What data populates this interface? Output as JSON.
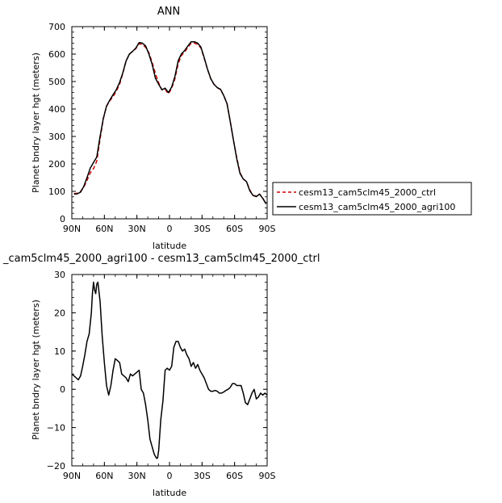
{
  "chart_data": [
    {
      "type": "line",
      "title": "ANN",
      "xlabel": "latitude",
      "ylabel": "Planet bndry layer hgt (meters)",
      "xlim": [
        90,
        -90
      ],
      "ylim": [
        0,
        700
      ],
      "xticks": [
        90,
        60,
        30,
        0,
        -30,
        -60,
        -90
      ],
      "xtick_labels": [
        "90N",
        "60N",
        "30N",
        "0",
        "30S",
        "60S",
        "90S"
      ],
      "yticks": [
        0,
        100,
        200,
        300,
        400,
        500,
        600,
        700
      ],
      "ytick_labels": [
        "0",
        "100",
        "200",
        "300",
        "400",
        "500",
        "600",
        "700"
      ],
      "x": [
        88,
        85,
        82,
        79,
        76,
        73,
        70,
        67,
        64,
        61,
        58,
        55,
        52,
        49,
        46,
        43,
        40,
        37,
        34,
        31,
        28,
        25,
        22,
        19,
        16,
        13,
        10,
        7,
        4,
        1,
        -2,
        -5,
        -8,
        -11,
        -14,
        -17,
        -20,
        -23,
        -26,
        -29,
        -32,
        -35,
        -38,
        -41,
        -44,
        -47,
        -50,
        -53,
        -56,
        -59,
        -62,
        -65,
        -68,
        -71,
        -74,
        -77,
        -80,
        -83,
        -86,
        -89
      ],
      "legend": {
        "placement": "right",
        "entries": [
          "cesm13_cam5clm45_2000_ctrl",
          "cesm13_cam5clm45_2000_agri100"
        ]
      },
      "series": [
        {
          "name": "cesm13_cam5clm45_2000_ctrl",
          "color": "#cc0000",
          "dash": "dashed",
          "values": [
            92,
            93,
            100,
            115,
            140,
            168,
            183,
            210,
            290,
            365,
            410,
            430,
            445,
            465,
            490,
            530,
            575,
            600,
            610,
            620,
            638,
            635,
            625,
            605,
            570,
            530,
            495,
            470,
            472,
            455,
            475,
            510,
            565,
            595,
            608,
            625,
            640,
            640,
            635,
            622,
            585,
            545,
            510,
            490,
            478,
            470,
            450,
            420,
            355,
            285,
            222,
            168,
            145,
            135,
            105,
            85,
            83,
            90,
            75,
            55
          ]
        },
        {
          "name": "cesm13_cam5clm45_2000_agri100",
          "color": "#000000",
          "dash": "solid",
          "values": [
            90,
            91,
            97,
            118,
            150,
            185,
            205,
            225,
            300,
            365,
            411,
            433,
            452,
            470,
            497,
            532,
            575,
            600,
            610,
            622,
            642,
            640,
            630,
            600,
            563,
            513,
            490,
            470,
            476,
            460,
            480,
            518,
            576,
            601,
            613,
            630,
            645,
            645,
            640,
            625,
            587,
            545,
            511,
            490,
            478,
            472,
            449,
            419,
            354,
            286,
            218,
            165,
            145,
            135,
            102,
            85,
            81,
            90,
            74,
            54
          ]
        }
      ]
    },
    {
      "type": "line",
      "title": "_cam5clm45_2000_agri100 - cesm13_cam5clm45_2000_ctrl",
      "xlabel": "latitude",
      "ylabel": "Planet bndry layer hgt (meters)",
      "xlim": [
        90,
        -90
      ],
      "ylim": [
        -20,
        30
      ],
      "xticks": [
        90,
        60,
        30,
        0,
        -30,
        -60,
        -90
      ],
      "xtick_labels": [
        "90N",
        "60N",
        "30N",
        "0",
        "30S",
        "60S",
        "90S"
      ],
      "yticks": [
        -20,
        -10,
        0,
        10,
        20,
        30
      ],
      "ytick_labels": [
        "−20",
        "−10",
        "0",
        "10",
        "20",
        "30"
      ],
      "series": [
        {
          "color": "#000000",
          "x": [
            90,
            88,
            86,
            84,
            82,
            80,
            78,
            76,
            74,
            72,
            71,
            70,
            69,
            68,
            67,
            66,
            64,
            62,
            60,
            58,
            56,
            54,
            52,
            50,
            48,
            46,
            44,
            42,
            40,
            38,
            36,
            34,
            32,
            30,
            28,
            26,
            24,
            22,
            20,
            18,
            16,
            15,
            14,
            13,
            12,
            11,
            10,
            9,
            8,
            6,
            4,
            2,
            0,
            -2,
            -4,
            -6,
            -8,
            -10,
            -12,
            -14,
            -16,
            -18,
            -20,
            -22,
            -24,
            -26,
            -28,
            -30,
            -32,
            -34,
            -36,
            -38,
            -40,
            -42,
            -44,
            -46,
            -48,
            -50,
            -52,
            -54,
            -56,
            -58,
            -60,
            -62,
            -64,
            -66,
            -68,
            -70,
            -72,
            -74,
            -76,
            -78,
            -80,
            -82,
            -84,
            -86,
            -88,
            -90
          ],
          "values": [
            4,
            3.5,
            3,
            2.5,
            3.5,
            6,
            9,
            12.5,
            14.5,
            20,
            25,
            28,
            26,
            25,
            27.5,
            28,
            23,
            14,
            7,
            1,
            -1.5,
            1,
            5,
            8,
            7.5,
            7,
            4,
            3.5,
            3,
            2,
            4,
            3.5,
            4,
            4.5,
            5,
            0,
            -1,
            -4,
            -8,
            -13,
            -15,
            -16,
            -17,
            -17.5,
            -18,
            -18,
            -16,
            -12,
            -8,
            -3,
            5,
            5.5,
            5,
            6,
            11,
            12.5,
            12.5,
            11,
            10,
            10.5,
            9,
            8,
            6,
            7,
            5.5,
            6.5,
            5,
            4,
            3,
            1.5,
            0,
            -0.5,
            -0.5,
            -0.3,
            -0.5,
            -1,
            -1,
            -0.7,
            -0.3,
            0,
            0.5,
            1.5,
            1.5,
            1,
            1,
            1,
            -1,
            -3.5,
            -4,
            -2.5,
            -1,
            0,
            -2.5,
            -2,
            -1,
            -1.5,
            -1,
            -1.5
          ]
        }
      ]
    }
  ]
}
